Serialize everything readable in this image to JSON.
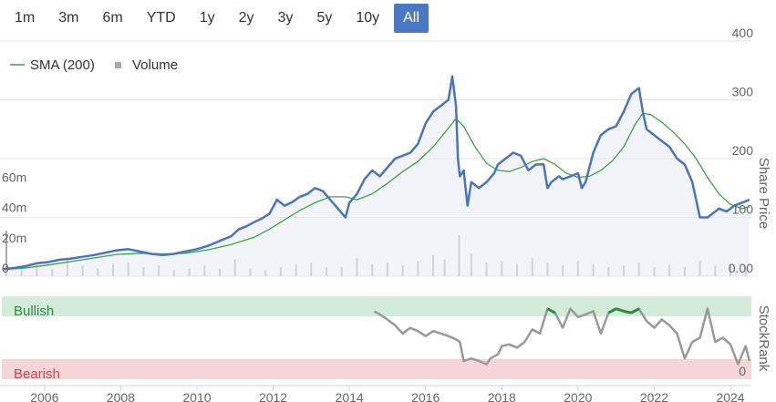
{
  "range_selector": {
    "buttons": [
      {
        "label": "1m",
        "active": false
      },
      {
        "label": "3m",
        "active": false
      },
      {
        "label": "6m",
        "active": false
      },
      {
        "label": "YTD",
        "active": false
      },
      {
        "label": "1y",
        "active": false
      },
      {
        "label": "2y",
        "active": false
      },
      {
        "label": "3y",
        "active": false
      },
      {
        "label": "5y",
        "active": false
      },
      {
        "label": "10y",
        "active": false
      },
      {
        "label": "All",
        "active": true
      }
    ],
    "active_color": "#4a78c2"
  },
  "chart_data": [
    {
      "type": "line",
      "ylabel": "Share Price",
      "y_right_ticks": [
        "0.00",
        "100",
        "200",
        "300",
        "400"
      ],
      "ylim": [
        0,
        400
      ],
      "volume_ticks": [
        "0",
        "20m",
        "40m",
        "60m"
      ],
      "volume_ylim": [
        0,
        80
      ],
      "x_ticks": [
        "2006",
        "2008",
        "2010",
        "2012",
        "2014",
        "2016",
        "2018",
        "2020",
        "2022",
        "2024"
      ],
      "xlim": [
        2004.88,
        2024.55
      ],
      "grid": true,
      "legend_position": "top-left",
      "legend": [
        {
          "label": "SMA (200)",
          "color": "#3aa63a",
          "marker": "line"
        },
        {
          "label": "Volume",
          "color": "#aaaaaa",
          "marker": "square"
        }
      ],
      "series": [
        {
          "name": "Share Price",
          "color": "#4a74c0",
          "x": [
            2004.9,
            2005.2,
            2005.5,
            2005.8,
            2006.1,
            2006.4,
            2006.7,
            2007.0,
            2007.3,
            2007.6,
            2007.9,
            2008.2,
            2008.5,
            2008.8,
            2009.1,
            2009.4,
            2009.7,
            2010.0,
            2010.3,
            2010.6,
            2010.9,
            2011.1,
            2011.3,
            2011.5,
            2011.7,
            2011.9,
            2012.1,
            2012.3,
            2012.5,
            2012.7,
            2012.9,
            2013.1,
            2013.3,
            2013.5,
            2013.7,
            2013.9,
            2014.0,
            2014.2,
            2014.4,
            2014.6,
            2014.8,
            2015.0,
            2015.2,
            2015.4,
            2015.6,
            2015.8,
            2016.0,
            2016.2,
            2016.4,
            2016.6,
            2016.7,
            2016.8,
            2016.85,
            2016.9,
            2017.0,
            2017.1,
            2017.2,
            2017.4,
            2017.6,
            2017.8,
            2017.9,
            2018.1,
            2018.3,
            2018.5,
            2018.7,
            2018.9,
            2019.1,
            2019.2,
            2019.3,
            2019.5,
            2019.6,
            2019.8,
            2020.0,
            2020.1,
            2020.2,
            2020.4,
            2020.6,
            2020.8,
            2021.0,
            2021.2,
            2021.4,
            2021.6,
            2021.7,
            2021.8,
            2022.0,
            2022.2,
            2022.4,
            2022.6,
            2022.8,
            2023.0,
            2023.2,
            2023.4,
            2023.5,
            2023.6,
            2023.7,
            2023.9,
            2024.1,
            2024.3,
            2024.5
          ],
          "values": [
            12,
            14,
            17,
            22,
            24,
            28,
            30,
            33,
            36,
            40,
            44,
            46,
            42,
            38,
            36,
            38,
            42,
            46,
            52,
            60,
            68,
            80,
            85,
            92,
            98,
            106,
            130,
            120,
            126,
            135,
            140,
            150,
            145,
            130,
            115,
            100,
            125,
            140,
            165,
            180,
            170,
            185,
            200,
            205,
            210,
            225,
            260,
            280,
            290,
            300,
            340,
            290,
            200,
            170,
            180,
            120,
            160,
            150,
            160,
            175,
            190,
            200,
            210,
            205,
            180,
            190,
            190,
            150,
            160,
            170,
            165,
            170,
            175,
            150,
            160,
            210,
            240,
            250,
            255,
            280,
            310,
            320,
            280,
            250,
            240,
            230,
            220,
            200,
            190,
            160,
            100,
            100,
            105,
            110,
            115,
            110,
            120,
            125,
            130
          ]
        },
        {
          "name": "SMA (200)",
          "color": "#3aa63a",
          "x": [
            2004.9,
            2005.5,
            2006.1,
            2006.7,
            2007.3,
            2007.9,
            2008.5,
            2009.1,
            2009.7,
            2010.3,
            2010.9,
            2011.5,
            2011.9,
            2012.3,
            2012.7,
            2013.1,
            2013.5,
            2013.9,
            2014.2,
            2014.6,
            2015.0,
            2015.4,
            2015.8,
            2016.2,
            2016.6,
            2016.8,
            2017.0,
            2017.3,
            2017.6,
            2017.9,
            2018.2,
            2018.5,
            2018.8,
            2019.1,
            2019.4,
            2019.7,
            2020.0,
            2020.3,
            2020.6,
            2020.9,
            2021.2,
            2021.5,
            2021.7,
            2021.9,
            2022.2,
            2022.5,
            2022.8,
            2023.1,
            2023.4,
            2023.7,
            2024.0,
            2024.3,
            2024.5
          ],
          "values": [
            11,
            14,
            19,
            25,
            31,
            37,
            39,
            38,
            39,
            45,
            54,
            66,
            80,
            96,
            112,
            125,
            135,
            135,
            130,
            140,
            158,
            178,
            195,
            220,
            252,
            268,
            255,
            220,
            192,
            180,
            178,
            185,
            195,
            200,
            190,
            175,
            168,
            170,
            180,
            196,
            220,
            258,
            277,
            275,
            262,
            245,
            225,
            200,
            168,
            140,
            122,
            115,
            118
          ]
        },
        {
          "name": "Volume",
          "color": "#aaaaaa",
          "type": "bar",
          "x": [
            2005.0,
            2005.4,
            2005.8,
            2006.2,
            2006.6,
            2007.0,
            2007.4,
            2007.8,
            2008.2,
            2008.6,
            2009.0,
            2009.4,
            2009.8,
            2010.2,
            2010.6,
            2011.0,
            2011.4,
            2011.8,
            2012.2,
            2012.6,
            2013.0,
            2013.4,
            2013.8,
            2014.2,
            2014.6,
            2015.0,
            2015.4,
            2015.8,
            2016.2,
            2016.5,
            2016.88,
            2017.2,
            2017.6,
            2018.0,
            2018.4,
            2018.8,
            2019.2,
            2019.6,
            2020.0,
            2020.4,
            2020.8,
            2021.2,
            2021.6,
            2022.0,
            2022.4,
            2022.8,
            2023.2,
            2023.6,
            2024.0,
            2024.4
          ],
          "values": [
            30,
            6,
            8,
            5,
            12,
            7,
            5,
            8,
            9,
            6,
            7,
            4,
            5,
            7,
            5,
            11,
            5,
            4,
            6,
            8,
            9,
            6,
            6,
            12,
            8,
            9,
            7,
            10,
            14,
            11,
            27,
            15,
            9,
            10,
            8,
            12,
            9,
            7,
            10,
            8,
            6,
            7,
            9,
            6,
            8,
            6,
            10,
            7,
            8,
            6
          ]
        }
      ]
    },
    {
      "type": "line",
      "ylabel": "StockRank",
      "y_ticks": [
        "0"
      ],
      "ylim": [
        0,
        100
      ],
      "xlim": [
        2004.88,
        2024.55
      ],
      "bands": [
        {
          "label": "Bullish",
          "from": 80,
          "to": 100,
          "color": "#d3ecd9",
          "text_color": "#2f8a3f"
        },
        {
          "label": "Bearish",
          "from": 0,
          "to": 20,
          "color": "#f5d5d7",
          "text_color": "#c9474f"
        }
      ],
      "series": [
        {
          "name": "StockRank",
          "color": "#999999",
          "x": [
            2014.65,
            2014.8,
            2015.0,
            2015.2,
            2015.4,
            2015.6,
            2015.8,
            2016.0,
            2016.2,
            2016.4,
            2016.6,
            2016.8,
            2016.9,
            2017.0,
            2017.2,
            2017.4,
            2017.6,
            2017.7,
            2017.9,
            2018.0,
            2018.2,
            2018.4,
            2018.6,
            2018.8,
            2019.0,
            2019.2,
            2019.4,
            2019.6,
            2019.8,
            2020.0,
            2020.2,
            2020.4,
            2020.6,
            2020.8,
            2021.0,
            2021.2,
            2021.4,
            2021.6,
            2021.8,
            2022.0,
            2022.2,
            2022.4,
            2022.6,
            2022.8,
            2023.0,
            2023.2,
            2023.4,
            2023.6,
            2023.8,
            2024.0,
            2024.2,
            2024.4,
            2024.5
          ],
          "values": [
            82,
            78,
            72,
            65,
            55,
            62,
            58,
            52,
            58,
            55,
            52,
            48,
            45,
            22,
            25,
            22,
            18,
            25,
            30,
            40,
            42,
            38,
            45,
            60,
            55,
            85,
            80,
            62,
            85,
            75,
            78,
            82,
            55,
            80,
            85,
            82,
            80,
            85,
            70,
            62,
            72,
            65,
            55,
            25,
            45,
            50,
            85,
            45,
            50,
            42,
            18,
            40,
            22
          ]
        }
      ]
    }
  ]
}
